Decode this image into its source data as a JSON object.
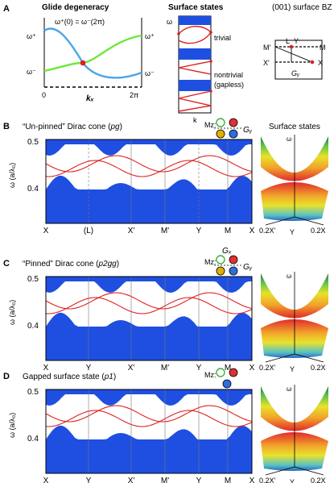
{
  "panelA": {
    "letter": "A",
    "glide": {
      "title": "Glide degeneracy",
      "equation": "ω⁺(0) = ω⁻(2π)",
      "y_top": "ω⁺",
      "y_bottom": "ω⁻",
      "right_top": "ω⁺",
      "right_bottom": "ω⁻",
      "x_start": "0",
      "x_end": "2π",
      "x_label": "kₓ",
      "colors": {
        "blue": "#4da6e6",
        "green": "#6ee83a",
        "crossing": "#e11d1d"
      }
    },
    "surface": {
      "title": "Surface states",
      "y_label": "ω",
      "trivial": "trivial",
      "nontrivial": "nontrivial",
      "gapless": "(gapless)",
      "x_label": "k"
    },
    "bz": {
      "title": "(001) surface BZ",
      "L": "L",
      "Y": "Y",
      "M_prime": "M'",
      "M": "M",
      "X_prime": "X'",
      "X": "X",
      "Gy": "Gᵧ"
    }
  },
  "panels": [
    {
      "letter": "B",
      "title_plain": "“Un-pinned” Dirac cone (",
      "title_group": "pg",
      "title_close": ")",
      "mz": "Mz:",
      "g_right": "Gᵧ",
      "g_top": "",
      "ticks": [
        "X",
        "(L)",
        "X'",
        "M'",
        "Y",
        "M",
        "X"
      ],
      "y_ticks": [
        "0.5",
        "0.4"
      ],
      "y_label": "ω (a/λ₀)",
      "side_title": "Surface states",
      "surf_labels": {
        "omega": "ω",
        "xp": "0.2X'",
        "y": "Y",
        "x": "0.2X"
      }
    },
    {
      "letter": "C",
      "title_plain": "“Pinned” Dirac cone (",
      "title_group": "p2gg",
      "title_close": ")",
      "mz": "Mz:",
      "g_right": "Gᵧ",
      "g_top": "Gₓ",
      "ticks": [
        "X",
        "Y",
        "X'",
        "M'",
        "Y",
        "M",
        "X"
      ],
      "y_ticks": [
        "0.5",
        "0.4"
      ],
      "y_label": "ω (a/λ₀)",
      "side_title": "",
      "surf_labels": {
        "omega": "ω",
        "xp": "0.2X'",
        "y": "Y",
        "x": "0.2X"
      }
    },
    {
      "letter": "D",
      "title_plain": "Gapped surface state (",
      "title_group": "p1",
      "title_close": ")",
      "mz": "Mz:",
      "g_right": "",
      "g_top": "",
      "ticks": [
        "X",
        "Y",
        "X'",
        "M'",
        "Y",
        "M",
        "X"
      ],
      "y_ticks": [
        "0.5",
        "0.4"
      ],
      "y_label": "ω (a/λ₀)",
      "side_title": "",
      "surf_labels": {
        "omega": "ω",
        "xp": "0.2X'",
        "y": "Y",
        "x": "0.2X"
      }
    }
  ],
  "colors": {
    "band": "#1f4fe0",
    "surface": "#e02020",
    "symbol_green": "#3fae3f",
    "symbol_red": "#e03030",
    "symbol_yellow": "#e0b000",
    "symbol_blue": "#2b6fe0"
  }
}
